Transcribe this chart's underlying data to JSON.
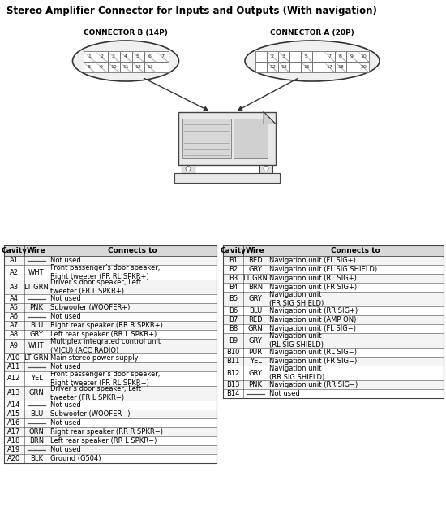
{
  "title": "Stereo Amplifier Connector for Inputs and Outputs (With navigation)",
  "connector_b_label": "CONNECTOR B (14P)",
  "connector_a_label": "CONNECTOR A (20P)",
  "conn_b_top": [
    1,
    2,
    3,
    4,
    5,
    6,
    7
  ],
  "conn_b_bot": [
    8,
    9,
    10,
    11,
    12,
    13,
    ""
  ],
  "conn_a_top": [
    "",
    2,
    3,
    "",
    5,
    "",
    7,
    8,
    9,
    10
  ],
  "conn_a_bot": [
    "",
    12,
    13,
    "",
    15,
    "",
    17,
    18,
    "",
    20
  ],
  "table_a_headers": [
    "Cavity",
    "Wire",
    "Connects to"
  ],
  "table_a_rows": [
    [
      "A1",
      "",
      "Not used"
    ],
    [
      "A2",
      "WHT",
      "Front passenger’s door speaker,\nRight tweeter (FR RL SPKR+)"
    ],
    [
      "A3",
      "LT GRN",
      "Driver’s door speaker, Left\ntweeter (FR L SPKR+)"
    ],
    [
      "A4",
      "",
      "Not used"
    ],
    [
      "A5",
      "PNK",
      "Subwoofer (WOOFER+)"
    ],
    [
      "A6",
      "",
      "Not used"
    ],
    [
      "A7",
      "BLU",
      "Right rear speaker (RR R SPKR+)"
    ],
    [
      "A8",
      "GRY",
      "Left rear speaker (RR L SPKR+)"
    ],
    [
      "A9",
      "WHT",
      "Multiplex integrated control unit\n(MICU) (ACC RADIO)"
    ],
    [
      "A10",
      "LT GRN",
      "Main stereo power supply"
    ],
    [
      "A11",
      "",
      "Not used"
    ],
    [
      "A12",
      "YEL",
      "Front passenger’s door speaker,\nRight tweeter (FR RL SPKR−)"
    ],
    [
      "A13",
      "GRN",
      "Driver’s door speaker, Left\ntweeter (FR L SPKR−)"
    ],
    [
      "A14",
      "",
      "Not used"
    ],
    [
      "A15",
      "BLU",
      "Subwoofer (WOOFER−)"
    ],
    [
      "A16",
      "",
      "Not used"
    ],
    [
      "A17",
      "ORN",
      "Right rear speaker (RR R SPKR−)"
    ],
    [
      "A18",
      "BRN",
      "Left rear speaker (RR L SPKR−)"
    ],
    [
      "A19",
      "",
      "Not used"
    ],
    [
      "A20",
      "BLK",
      "Ground (G504)"
    ]
  ],
  "table_b_headers": [
    "Cavity",
    "Wire",
    "Connects to"
  ],
  "table_b_rows": [
    [
      "B1",
      "RED",
      "Navigation unit (FL SIG+)"
    ],
    [
      "B2",
      "GRY",
      "Navigation unit (FL SIG SHIELD)"
    ],
    [
      "B3",
      "LT GRN",
      "Navigation unit (RL SIG+)"
    ],
    [
      "B4",
      "BRN",
      "Navigation unit (FR SIG+)"
    ],
    [
      "B5",
      "GRY",
      "Navigation unit\n(FR SIG SHIELD)"
    ],
    [
      "B6",
      "BLU",
      "Navigation unit (RR SIG+)"
    ],
    [
      "B7",
      "RED",
      "Navigation unit (AMP ON)"
    ],
    [
      "B8",
      "GRN",
      "Navigation unit (FL SIG−)"
    ],
    [
      "B9",
      "GRY",
      "Navigation unit\n(RL SIG SHIELD)"
    ],
    [
      "B10",
      "PUR",
      "Navigation unit (RL SIG−)"
    ],
    [
      "B11",
      "YEL",
      "Navigation unit (FR SIG−)"
    ],
    [
      "B12",
      "GRY",
      "Navigation unit\n(RR SIG SHIELD)"
    ],
    [
      "B13",
      "PNK",
      "Navigation unit (RR SIG−)"
    ],
    [
      "B14",
      "",
      "Not used"
    ]
  ],
  "bg_color": "#ffffff",
  "header_bg": "#d8d8d8",
  "border_color": "#444444",
  "text_color": "#000000",
  "title_fontsize": 8.5,
  "table_fontsize": 6.0
}
